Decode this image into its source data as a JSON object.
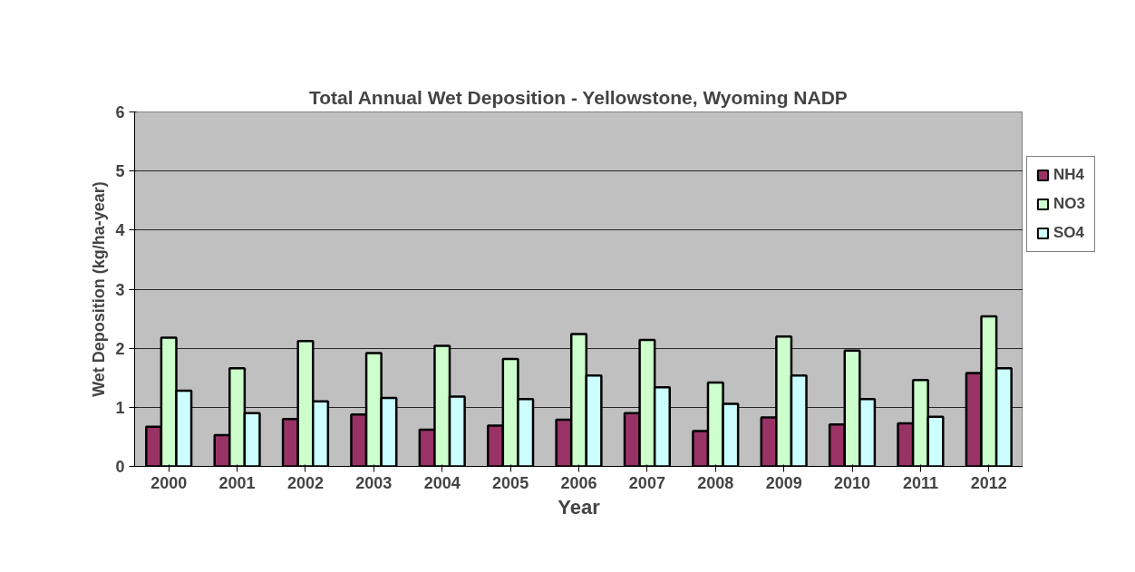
{
  "chart_data": {
    "type": "bar",
    "title": "Total Annual Wet Deposition - Yellowstone, Wyoming NADP",
    "xlabel": "Year",
    "ylabel": "Wet Deposition (kg/ha-year)",
    "categories": [
      "2000",
      "2001",
      "2002",
      "2003",
      "2004",
      "2005",
      "2006",
      "2007",
      "2008",
      "2009",
      "2010",
      "2011",
      "2012"
    ],
    "series": [
      {
        "name": "NH4",
        "color": "#993366",
        "values": [
          0.67,
          0.53,
          0.8,
          0.88,
          0.62,
          0.69,
          0.79,
          0.9,
          0.6,
          0.83,
          0.71,
          0.73,
          1.58
        ]
      },
      {
        "name": "NO3",
        "color": "#ccffcc",
        "values": [
          2.18,
          1.66,
          2.12,
          1.92,
          2.04,
          1.82,
          2.24,
          2.14,
          1.42,
          2.2,
          1.96,
          1.46,
          2.54
        ]
      },
      {
        "name": "SO4",
        "color": "#ccffff",
        "values": [
          1.28,
          0.9,
          1.1,
          1.16,
          1.18,
          1.14,
          1.54,
          1.34,
          1.06,
          1.54,
          1.14,
          0.84,
          1.66
        ]
      }
    ],
    "ylim": [
      0,
      6
    ],
    "yticks": [
      0,
      1,
      2,
      3,
      4,
      5,
      6
    ],
    "grid": "y",
    "legend": "right"
  }
}
